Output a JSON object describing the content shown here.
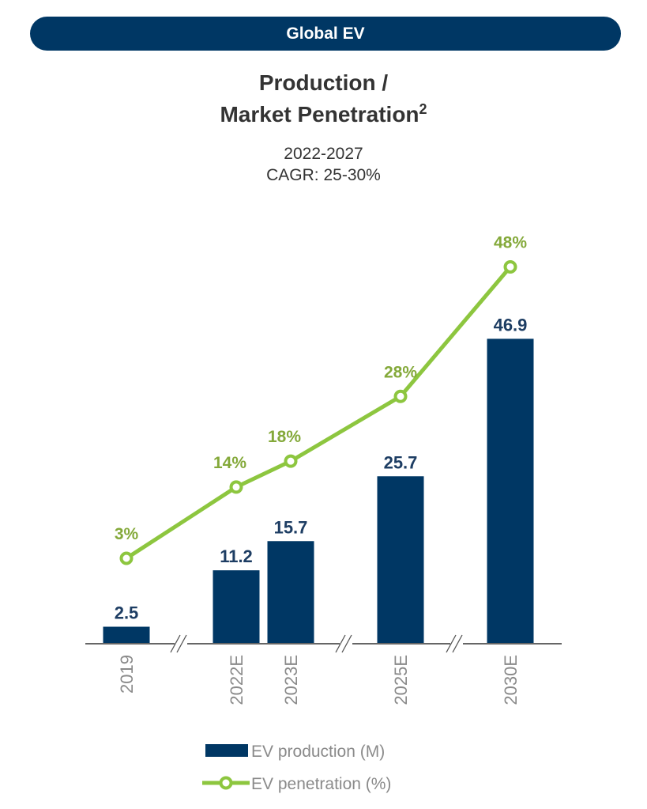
{
  "header": {
    "banner": "Global EV"
  },
  "title": {
    "line1": "Production /",
    "line2": "Market Penetration",
    "superscript": "2"
  },
  "subtitle": {
    "line1": "2022-2027",
    "line2": "CAGR: 25-30%"
  },
  "colors": {
    "bar": "#003764",
    "line": "#8dc63f",
    "line_label": "#84a93a",
    "bar_label": "#1d3d63",
    "axis": "#333333"
  },
  "chart_data": {
    "type": "bar",
    "title": "Production / Market Penetration",
    "categories": [
      "2019",
      "2022E",
      "2023E",
      "2025E",
      "2030E"
    ],
    "axis_breaks_after": [
      "2019",
      "2023E",
      "2025E"
    ],
    "series": [
      {
        "name": "EV production (M)",
        "type": "bar",
        "values": [
          2.5,
          11.2,
          15.7,
          25.7,
          46.9
        ],
        "labels": [
          "2.5",
          "11.2",
          "15.7",
          "25.7",
          "46.9"
        ]
      },
      {
        "name": "EV penetration (%)",
        "type": "line",
        "values": [
          3,
          14,
          18,
          28,
          48
        ],
        "labels": [
          "3%",
          "14%",
          "18%",
          "28%",
          "48%"
        ]
      }
    ],
    "xlabel": "",
    "ylabel": "",
    "y_axis_visible": false,
    "grid": false,
    "legend": {
      "placement": "bottom-center",
      "entries": [
        "EV production (M)",
        "EV penetration (%)"
      ]
    }
  }
}
